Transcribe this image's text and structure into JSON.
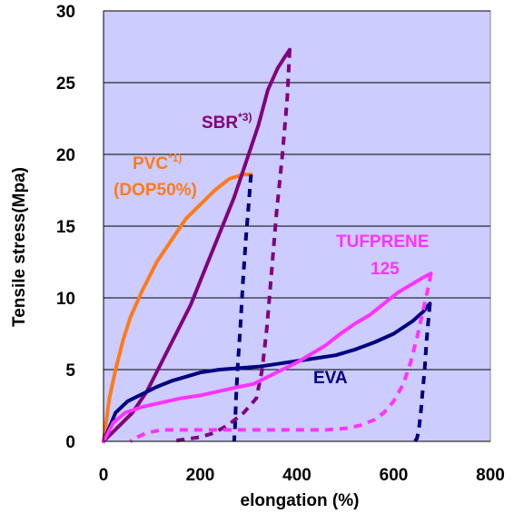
{
  "chart_data": {
    "type": "line",
    "title": "",
    "xlabel": "elongation (%)",
    "ylabel": "Tensile stress(Mpa)",
    "xlim": [
      0,
      800
    ],
    "ylim": [
      0,
      30
    ],
    "x_ticks": [
      "0",
      "200",
      "400",
      "600",
      "800"
    ],
    "y_ticks": [
      "0",
      "5",
      "10",
      "15",
      "20",
      "25",
      "30"
    ],
    "grid": "horizontal",
    "background": "#ccccff",
    "annotations": [
      {
        "text": "SBR",
        "sup": "*3)",
        "color": "#800080"
      },
      {
        "text": "PVC",
        "sup": "*1)",
        "color": "#ff7a1a"
      },
      {
        "text": "(DOP50%)",
        "color": "#ff7a1a"
      },
      {
        "text": "TUFPRENE",
        "color": "#ff33ff"
      },
      {
        "text": "125",
        "color": "#ff33ff"
      },
      {
        "text": "EVA",
        "color": "#000080"
      }
    ],
    "series": [
      {
        "label": "PVC (DOP50%)",
        "color": "#ff7a1a",
        "style": "solid",
        "points": [
          [
            0,
            0
          ],
          [
            12,
            3
          ],
          [
            25,
            5
          ],
          [
            40,
            7
          ],
          [
            55,
            8.6
          ],
          [
            80,
            10.5
          ],
          [
            110,
            12.5
          ],
          [
            140,
            14
          ],
          [
            170,
            15.5
          ],
          [
            200,
            16.5
          ],
          [
            230,
            17.5
          ],
          [
            260,
            18.3
          ],
          [
            290,
            18.6
          ],
          [
            305,
            18.6
          ]
        ]
      },
      {
        "label": "SBR",
        "color": "#800080",
        "style": "solid",
        "points": [
          [
            0,
            0
          ],
          [
            30,
            1
          ],
          [
            60,
            2
          ],
          [
            90,
            3.5
          ],
          [
            120,
            5.5
          ],
          [
            150,
            7.5
          ],
          [
            180,
            9.5
          ],
          [
            210,
            12
          ],
          [
            240,
            14.5
          ],
          [
            270,
            17
          ],
          [
            300,
            20
          ],
          [
            320,
            22
          ],
          [
            340,
            24.5
          ],
          [
            360,
            26
          ],
          [
            375,
            26.8
          ],
          [
            385,
            27.3
          ]
        ]
      },
      {
        "label": "SBR unload",
        "color": "#800080",
        "style": "dashed",
        "points": [
          [
            385,
            27.3
          ],
          [
            380,
            24
          ],
          [
            370,
            20
          ],
          [
            358,
            16
          ],
          [
            348,
            12
          ],
          [
            338,
            8
          ],
          [
            328,
            5
          ],
          [
            316,
            3
          ],
          [
            290,
            2
          ],
          [
            260,
            1.2
          ],
          [
            230,
            0.6
          ],
          [
            200,
            0.3
          ],
          [
            160,
            0.1
          ],
          [
            140,
            0
          ]
        ]
      },
      {
        "label": "PVC unload",
        "color": "#000080",
        "style": "dashed",
        "points": [
          [
            305,
            18.6
          ],
          [
            300,
            16.5
          ],
          [
            294,
            14
          ],
          [
            288,
            11
          ],
          [
            283,
            8
          ],
          [
            278,
            5.5
          ],
          [
            274,
            3
          ],
          [
            272,
            1
          ],
          [
            270,
            0
          ]
        ]
      },
      {
        "label": "EVA",
        "color": "#000080",
        "style": "solid",
        "points": [
          [
            0,
            0
          ],
          [
            25,
            2
          ],
          [
            50,
            2.8
          ],
          [
            80,
            3.3
          ],
          [
            110,
            3.8
          ],
          [
            140,
            4.2
          ],
          [
            170,
            4.5
          ],
          [
            200,
            4.8
          ],
          [
            240,
            5
          ],
          [
            280,
            5.1
          ],
          [
            320,
            5.2
          ],
          [
            360,
            5.4
          ],
          [
            400,
            5.6
          ],
          [
            440,
            5.8
          ],
          [
            480,
            6
          ],
          [
            520,
            6.4
          ],
          [
            560,
            6.9
          ],
          [
            600,
            7.5
          ],
          [
            640,
            8.4
          ],
          [
            660,
            9
          ],
          [
            675,
            9.6
          ]
        ]
      },
      {
        "label": "EVA unload",
        "color": "#000080",
        "style": "dashed",
        "points": [
          [
            675,
            9.6
          ],
          [
            672,
            8.5
          ],
          [
            668,
            7
          ],
          [
            664,
            5
          ],
          [
            660,
            3.5
          ],
          [
            656,
            2
          ],
          [
            652,
            0.8
          ],
          [
            648,
            0.2
          ],
          [
            644,
            0
          ]
        ]
      },
      {
        "label": "TUFPRENE 125",
        "color": "#ff33ff",
        "style": "solid",
        "points": [
          [
            0,
            0
          ],
          [
            20,
            1.3
          ],
          [
            45,
            2
          ],
          [
            80,
            2.4
          ],
          [
            120,
            2.7
          ],
          [
            160,
            3
          ],
          [
            200,
            3.2
          ],
          [
            240,
            3.5
          ],
          [
            280,
            3.8
          ],
          [
            310,
            4
          ],
          [
            340,
            4.5
          ],
          [
            370,
            5
          ],
          [
            400,
            5.5
          ],
          [
            430,
            6.1
          ],
          [
            460,
            6.7
          ],
          [
            490,
            7.5
          ],
          [
            520,
            8.2
          ],
          [
            550,
            8.8
          ],
          [
            580,
            9.6
          ],
          [
            610,
            10.4
          ],
          [
            640,
            11
          ],
          [
            660,
            11.4
          ],
          [
            677,
            11.7
          ]
        ]
      },
      {
        "label": "TUFPRENE 125 unload",
        "color": "#ff33ff",
        "style": "dashed",
        "points": [
          [
            677,
            11.7
          ],
          [
            670,
            10.5
          ],
          [
            660,
            9
          ],
          [
            648,
            7.2
          ],
          [
            635,
            5.5
          ],
          [
            620,
            4
          ],
          [
            600,
            2.8
          ],
          [
            580,
            2
          ],
          [
            560,
            1.5
          ],
          [
            530,
            1.1
          ],
          [
            500,
            0.9
          ],
          [
            460,
            0.8
          ],
          [
            420,
            0.8
          ],
          [
            400,
            0.8
          ],
          [
            360,
            0.8
          ],
          [
            320,
            0.8
          ],
          [
            280,
            0.8
          ],
          [
            240,
            0.8
          ],
          [
            200,
            0.8
          ],
          [
            160,
            0.8
          ],
          [
            120,
            0.8
          ],
          [
            90,
            0.6
          ],
          [
            70,
            0.3
          ],
          [
            55,
            0
          ]
        ]
      }
    ]
  }
}
